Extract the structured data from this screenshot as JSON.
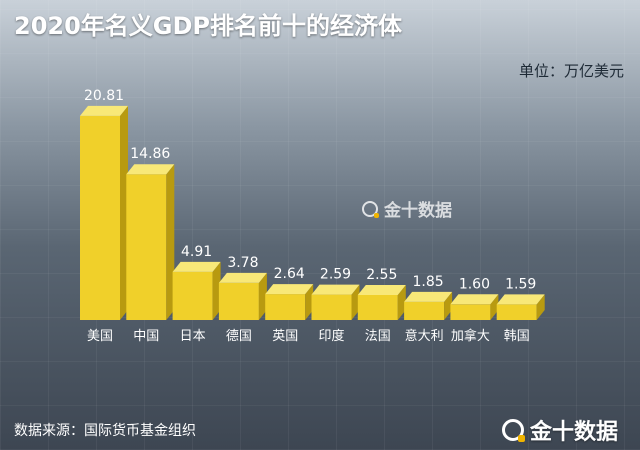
{
  "header": {
    "title": "2020年名义GDP排名前十的经济体",
    "unit": "单位：万亿美元"
  },
  "footer": {
    "source": "数据来源：国际货币基金组织"
  },
  "watermark": {
    "center": "金十数据",
    "corner": "金十数据"
  },
  "colors": {
    "bar_front": "#f0d02a",
    "bar_top": "#f8e878",
    "bar_side": "#b89a10"
  },
  "chart_data": {
    "type": "bar",
    "title": "2020年名义GDP排名前十的经济体",
    "ylabel": "",
    "xlabel": "",
    "ylim": [
      0,
      21
    ],
    "categories": [
      "美国",
      "中国",
      "日本",
      "德国",
      "英国",
      "印度",
      "法国",
      "意大利",
      "加拿大",
      "韩国"
    ],
    "values": [
      20.81,
      14.86,
      4.91,
      3.78,
      2.64,
      2.59,
      2.55,
      1.85,
      1.6,
      1.59
    ],
    "value_labels": [
      "20.81",
      "14.86",
      "4.91",
      "3.78",
      "2.64",
      "2.59",
      "2.55",
      "1.85",
      "1.60",
      "1.59"
    ],
    "grid": false
  }
}
